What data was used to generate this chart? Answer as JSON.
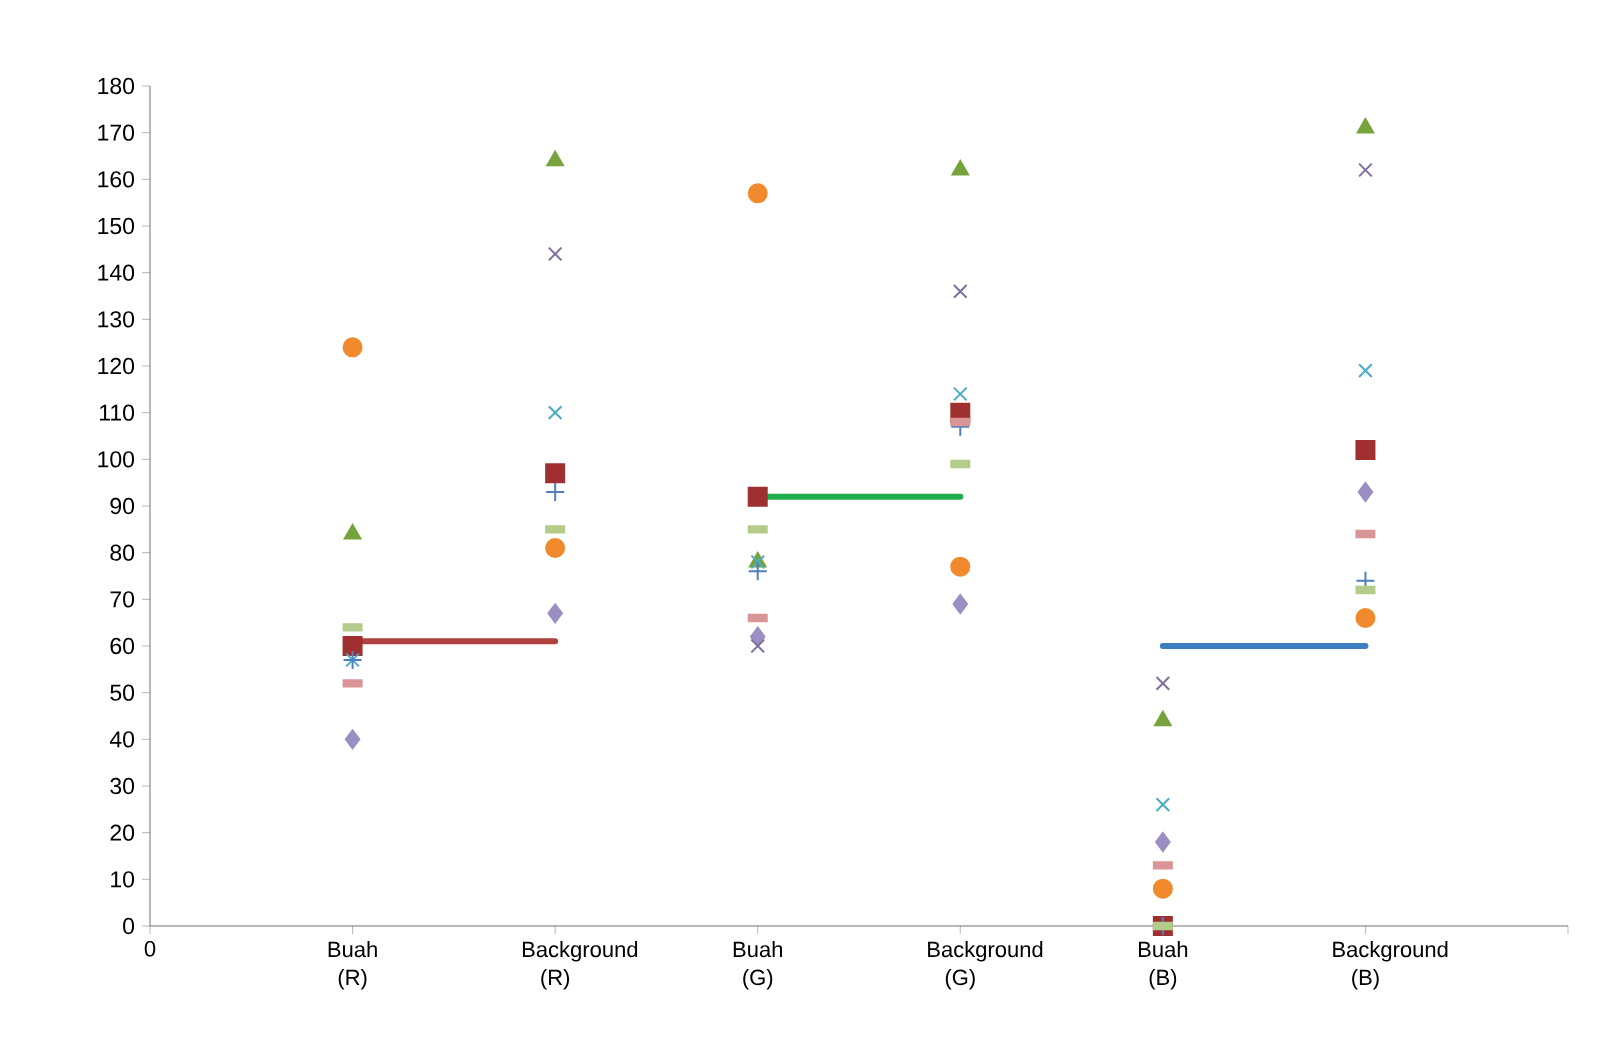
{
  "chart_data": {
    "type": "scatter",
    "categories": [
      "Buah (R)",
      "Background (R)",
      "Buah (G)",
      "Background (G)",
      "Buah (B)",
      "Background (B)"
    ],
    "annotations": [
      "0"
    ],
    "ylim": [
      0,
      180
    ],
    "yticks": [
      0,
      10,
      20,
      30,
      40,
      50,
      60,
      70,
      80,
      90,
      100,
      110,
      120,
      130,
      140,
      150,
      160,
      170,
      180
    ],
    "series": [
      {
        "marker": "diamond",
        "color": "#9b8ec4",
        "values": [
          40,
          67,
          62,
          69,
          18,
          93
        ]
      },
      {
        "marker": "square",
        "color": "#a0302f",
        "values": [
          60,
          97,
          92,
          110,
          0,
          102
        ]
      },
      {
        "marker": "triangle",
        "color": "#76a33c",
        "values": [
          84,
          164,
          78,
          162,
          44,
          171
        ]
      },
      {
        "marker": "cross",
        "color": "#7e6fa0",
        "values": [
          null,
          144,
          60,
          136,
          52,
          162
        ]
      },
      {
        "marker": "cross",
        "color": "#4aacc6",
        "values": [
          57,
          110,
          78,
          114,
          26,
          119
        ]
      },
      {
        "marker": "circle",
        "color": "#f08a2c",
        "values": [
          124,
          81,
          157,
          77,
          8,
          66
        ]
      },
      {
        "marker": "plus",
        "color": "#4f7fc0",
        "values": [
          57,
          93,
          76,
          107,
          0,
          74
        ]
      },
      {
        "marker": "square",
        "color": "#b3cc8a",
        "values": [
          64,
          85,
          85,
          99,
          0,
          72
        ]
      },
      {
        "marker": "square",
        "color": "#d99597",
        "values": [
          52,
          null,
          66,
          108,
          13,
          84
        ]
      },
      {
        "type": "line",
        "color": "#b0413e",
        "x": [
          "Buah (R)",
          "Background (R)"
        ],
        "values": [
          61,
          61
        ]
      },
      {
        "type": "line",
        "color": "#1fae4b",
        "x": [
          "Buah (G)",
          "Background (G)"
        ],
        "values": [
          92,
          92
        ]
      },
      {
        "type": "line",
        "color": "#3c7fc0",
        "x": [
          "Buah (B)",
          "Background (B)"
        ],
        "values": [
          60,
          60
        ]
      }
    ]
  }
}
